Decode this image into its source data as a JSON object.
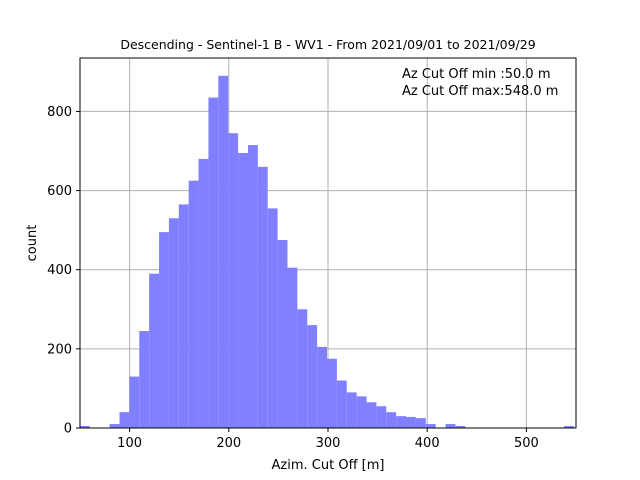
{
  "chart_data": {
    "type": "bar",
    "title": "Descending - Sentinel-1 B - WV1 - From 2021/09/01 to 2021/09/29",
    "xlabel": "Azim. Cut Off [m]",
    "ylabel": "count",
    "xlim": [
      50,
      550
    ],
    "ylim": [
      0,
      935
    ],
    "xticks": [
      100,
      200,
      300,
      400,
      500
    ],
    "yticks": [
      0,
      200,
      400,
      600,
      800
    ],
    "grid": true,
    "bar_color": "#8080ff",
    "bin_width": 9.96,
    "bin_starts": [
      50.0,
      59.96,
      69.92,
      79.88,
      89.84,
      99.8,
      109.76,
      119.72,
      129.68,
      139.64,
      149.6,
      159.56,
      169.52,
      179.48,
      189.44,
      199.4,
      209.36,
      219.32,
      229.28,
      239.24,
      249.2,
      259.16,
      269.12,
      279.08,
      289.04,
      299.0,
      308.96,
      318.92,
      328.88,
      338.84,
      348.8,
      358.76,
      368.72,
      378.68,
      388.64,
      398.6,
      408.56,
      418.52,
      428.48,
      438.44,
      448.4,
      458.36,
      468.32,
      478.28,
      488.24,
      498.2,
      508.16,
      518.12,
      528.08,
      538.04
    ],
    "values": [
      5,
      0,
      0,
      10,
      40,
      130,
      245,
      390,
      495,
      530,
      565,
      625,
      680,
      835,
      890,
      745,
      695,
      715,
      660,
      555,
      475,
      405,
      300,
      260,
      205,
      175,
      120,
      90,
      80,
      65,
      55,
      40,
      30,
      28,
      25,
      10,
      0,
      10,
      5,
      0,
      0,
      0,
      0,
      0,
      0,
      0,
      0,
      0,
      0,
      5
    ],
    "annotations": [
      "Az Cut Off min :50.0 m",
      "Az Cut Off max:548.0 m"
    ]
  }
}
